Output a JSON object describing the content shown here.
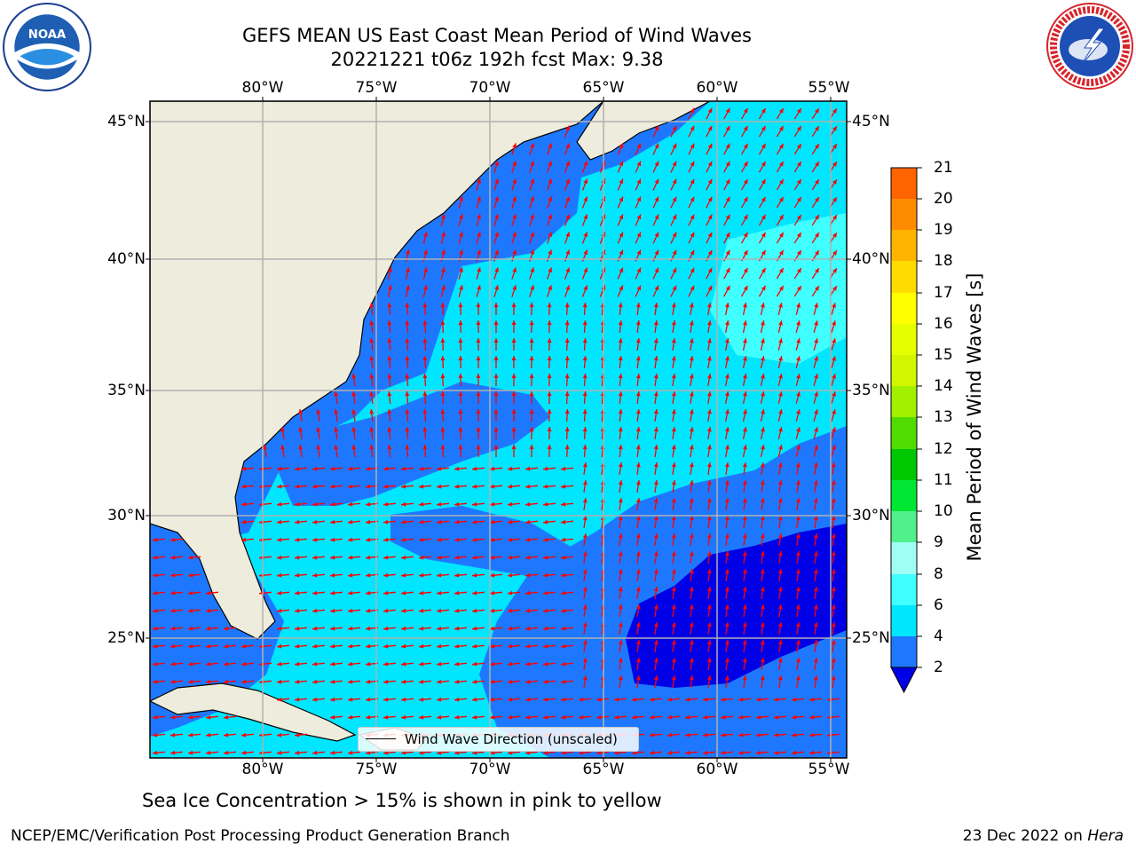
{
  "header": {
    "title_line1": "GEFS MEAN US East Coast Mean Period of Wind Waves",
    "title_line2": "20221221 t06z 192h fcst   Max: 9.38"
  },
  "logos": {
    "left": {
      "text": "NOAA",
      "ring_text": "NATIONAL OCEANIC AND ATMOSPHERIC ADMINISTRATION · U.S. DEPARTMENT OF COMMERCE"
    },
    "right": {
      "ring_text": "NATIONAL WEATHER SERVICE"
    }
  },
  "map": {
    "lon_ticks": [
      "80°W",
      "75°W",
      "70°W",
      "65°W",
      "60°W",
      "55°W"
    ],
    "lat_ticks": [
      "45°N",
      "40°N",
      "35°N",
      "30°N",
      "25°N"
    ],
    "legend_label": "Wind Wave Direction (unscaled)",
    "colors": {
      "land": "#eeecdc",
      "band_2_4": "#1e78ff",
      "band_4_6": "#00e6ff",
      "band_6_8": "#40ffff",
      "band_8_9": "#a0fff5",
      "below_2": "#0000e6",
      "arrow": "#ff0000"
    }
  },
  "colorbar": {
    "label": "Mean Period of Wind Waves [s]",
    "ticks": [
      "21",
      "20",
      "19",
      "18",
      "17",
      "16",
      "15",
      "14",
      "13",
      "12",
      "11",
      "10",
      "9",
      "8",
      "6",
      "4",
      "2"
    ],
    "bands": [
      "#0000e6",
      "#1e78ff",
      "#00e6ff",
      "#40ffff",
      "#a0fff5",
      "#50f08c",
      "#00e632",
      "#00c800",
      "#50dc00",
      "#a0f000",
      "#d2f500",
      "#e6ff00",
      "#ffff00",
      "#ffdc00",
      "#ffb400",
      "#ff8c00",
      "#ff6400",
      "#ff3c00",
      "#ff0000"
    ]
  },
  "footer": {
    "subtitle": "Sea Ice Concentration > 15% is shown in pink to yellow",
    "left": "NCEP/EMC/Verification Post Processing Product Generation Branch",
    "right_date": "23 Dec 2022 on ",
    "right_host": "Hera"
  }
}
